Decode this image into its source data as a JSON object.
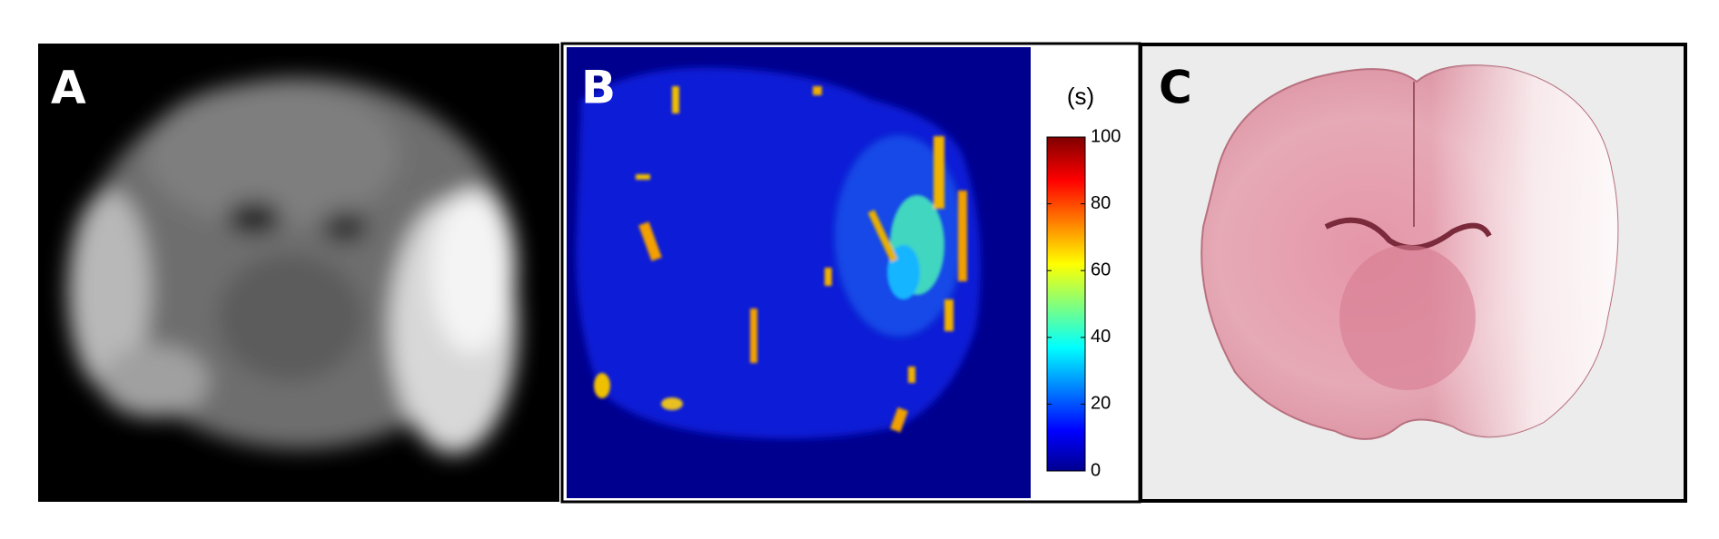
{
  "panels": [
    {
      "label": "A"
    },
    {
      "label": "B",
      "colorbar": {
        "unit": "(s)",
        "range": [
          0,
          100
        ],
        "ticks": [
          0,
          20,
          40,
          60,
          80,
          100
        ]
      }
    },
    {
      "label": "C"
    }
  ]
}
